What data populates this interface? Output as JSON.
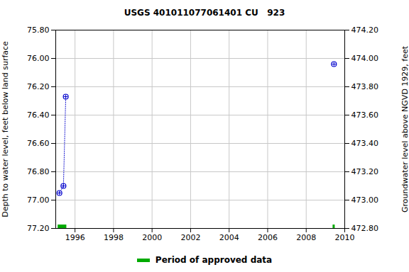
{
  "chart_data": {
    "type": "scatter",
    "title": "USGS 401011077061401 CU   923",
    "x": [
      1995.19,
      1995.4,
      1995.52,
      null,
      2009.44
    ],
    "values": [
      76.95,
      76.9,
      76.27,
      null,
      76.04
    ],
    "color": "#0000cc",
    "marker": "circle",
    "line_style": "dotted",
    "xlim": [
      1995,
      2010
    ],
    "xticks": [
      1996,
      1998,
      2000,
      2002,
      2004,
      2006,
      2008,
      2010
    ],
    "ylabel": "Depth to water level, feet below land surface",
    "ylim": [
      75.8,
      77.2
    ],
    "yticks": [
      {
        "value": 75.8,
        "label": "75.80"
      },
      {
        "value": 76.0,
        "label": "76.00"
      },
      {
        "value": 76.2,
        "label": "76.20"
      },
      {
        "value": 76.4,
        "label": "76.40"
      },
      {
        "value": 76.6,
        "label": "76.60"
      },
      {
        "value": 76.8,
        "label": "76.80"
      },
      {
        "value": 77.0,
        "label": "77.00"
      },
      {
        "value": 77.2,
        "label": "77.20"
      }
    ],
    "y2label": "Groundwater level above NGVD 1929, feet",
    "y2lim": [
      474.2,
      472.8
    ],
    "y2ticks": [
      {
        "value": 474.2,
        "label": "474.20"
      },
      {
        "value": 474.0,
        "label": "474.00"
      },
      {
        "value": 473.8,
        "label": "473.80"
      },
      {
        "value": 473.6,
        "label": "473.60"
      },
      {
        "value": 473.4,
        "label": "473.40"
      },
      {
        "value": 473.2,
        "label": "473.20"
      },
      {
        "value": 473.0,
        "label": "473.00"
      },
      {
        "value": 472.8,
        "label": "472.80"
      }
    ],
    "grid": true,
    "approved_periods": {
      "name": "Period of approved data",
      "color": "#00aa00",
      "periods": [
        [
          1995.1,
          1995.55
        ],
        [
          2009.37,
          2009.48
        ]
      ]
    },
    "legend": "bottom"
  }
}
